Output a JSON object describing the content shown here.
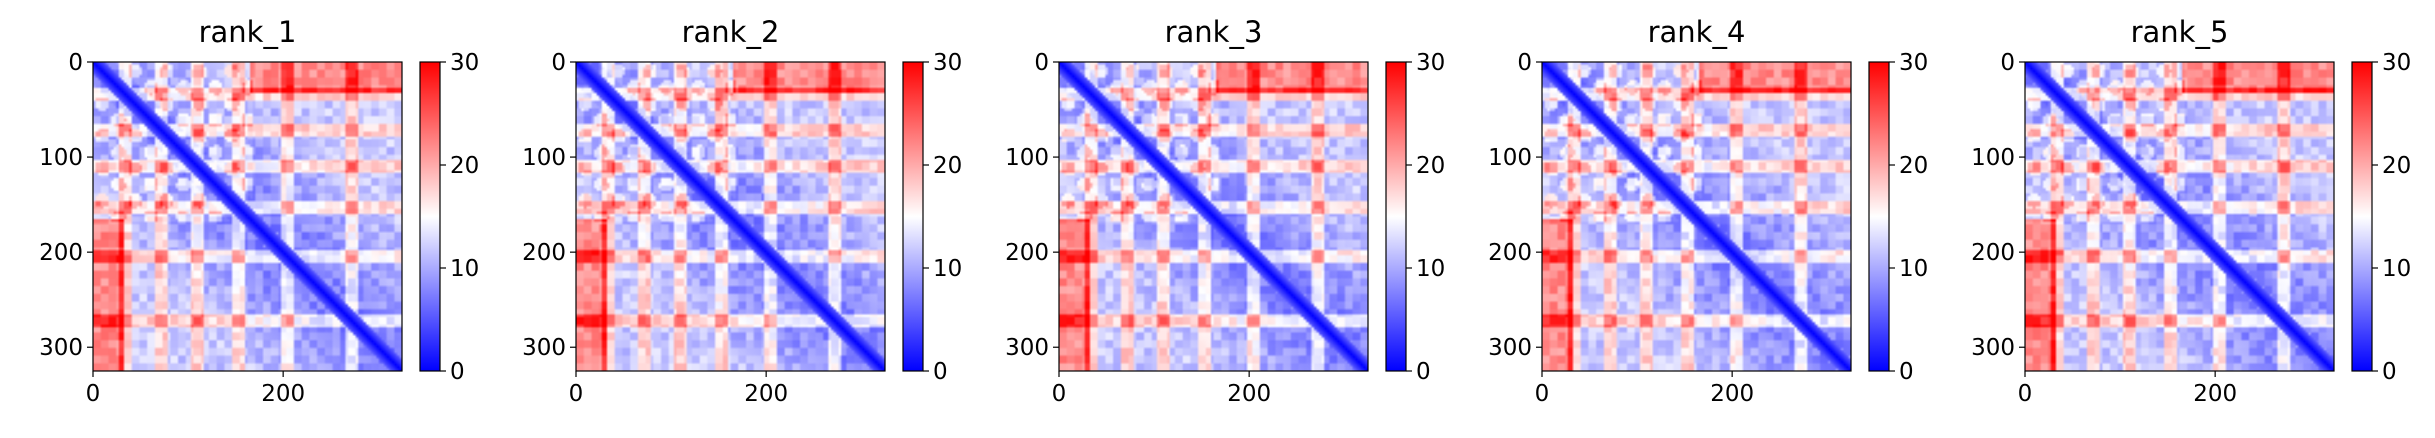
{
  "chart_data": [
    {
      "type": "heatmap",
      "title": "rank_1",
      "xticks": [
        0,
        200
      ],
      "yticks": [
        0,
        100,
        200,
        300
      ],
      "xlim": [
        0,
        325
      ],
      "ylim": [
        325,
        0
      ],
      "colorbar": {
        "ticks": [
          0,
          10,
          20,
          30
        ],
        "range": [
          0,
          30
        ],
        "colormap": "bwr"
      }
    },
    {
      "type": "heatmap",
      "title": "rank_2",
      "xticks": [
        0,
        200
      ],
      "yticks": [
        0,
        100,
        200,
        300
      ],
      "xlim": [
        0,
        325
      ],
      "ylim": [
        325,
        0
      ],
      "colorbar": {
        "ticks": [
          0,
          10,
          20,
          30
        ],
        "range": [
          0,
          30
        ],
        "colormap": "bwr"
      }
    },
    {
      "type": "heatmap",
      "title": "rank_3",
      "xticks": [
        0,
        200
      ],
      "yticks": [
        0,
        100,
        200,
        300
      ],
      "xlim": [
        0,
        325
      ],
      "ylim": [
        325,
        0
      ],
      "colorbar": {
        "ticks": [
          0,
          10,
          20,
          30
        ],
        "range": [
          0,
          30
        ],
        "colormap": "bwr"
      }
    },
    {
      "type": "heatmap",
      "title": "rank_4",
      "xticks": [
        0,
        200
      ],
      "yticks": [
        0,
        100,
        200,
        300
      ],
      "xlim": [
        0,
        325
      ],
      "ylim": [
        325,
        0
      ],
      "colorbar": {
        "ticks": [
          0,
          10,
          20,
          30
        ],
        "range": [
          0,
          30
        ],
        "colormap": "bwr"
      }
    },
    {
      "type": "heatmap",
      "title": "rank_5",
      "xticks": [
        0,
        200
      ],
      "yticks": [
        0,
        100,
        200,
        300
      ],
      "xlim": [
        0,
        325
      ],
      "ylim": [
        325,
        0
      ],
      "colorbar": {
        "ticks": [
          0,
          10,
          20,
          30
        ],
        "range": [
          0,
          30
        ],
        "colormap": "bwr"
      }
    }
  ],
  "colors": {
    "low": "#0000ff",
    "mid": "#ffffff",
    "high": "#ff0000"
  }
}
